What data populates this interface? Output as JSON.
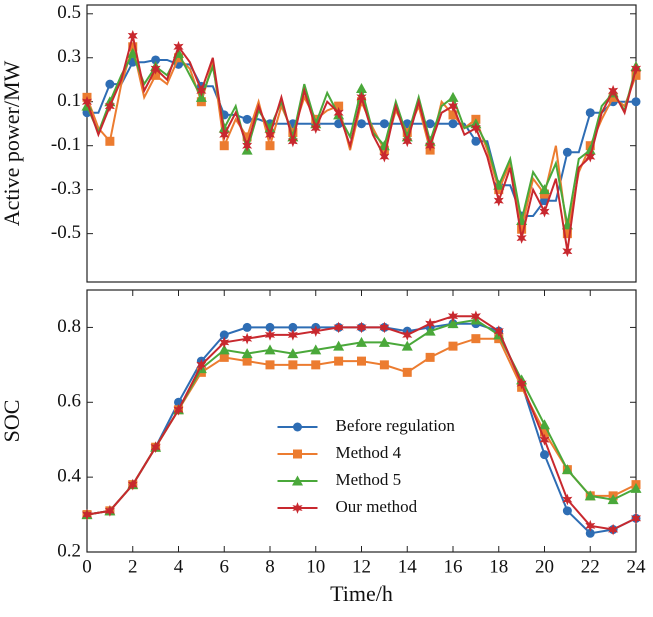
{
  "chart_data": [
    {
      "type": "line",
      "y_label": "Active power/MW",
      "x": [
        0,
        0.5,
        1,
        1.5,
        2,
        2.5,
        3,
        3.5,
        4,
        4.5,
        5,
        5.5,
        6,
        6.5,
        7,
        7.5,
        8,
        8.5,
        9,
        9.5,
        10,
        10.5,
        11,
        11.5,
        12,
        12.5,
        13,
        13.5,
        14,
        14.5,
        15,
        15.5,
        16,
        16.5,
        17,
        17.5,
        18,
        18.5,
        19,
        19.5,
        20,
        20.5,
        21,
        21.5,
        22,
        22.5,
        23,
        23.5,
        24
      ],
      "xlim": [
        0,
        24
      ],
      "ylim": [
        -0.72,
        0.54
      ],
      "yticks": [
        0.5,
        0.3,
        0.1,
        -0.1,
        -0.3,
        -0.5
      ],
      "series": [
        {
          "name": "Before regulation",
          "color": "#2e6db4",
          "marker": "circle",
          "values": [
            0.05,
            0.05,
            0.18,
            0.18,
            0.28,
            0.28,
            0.29,
            0.29,
            0.27,
            0.27,
            0.17,
            0.17,
            0.04,
            0.04,
            0.02,
            0.02,
            0.0,
            0.0,
            0.0,
            0.0,
            0.0,
            0.0,
            0.0,
            0.0,
            0.0,
            0.0,
            0.0,
            0.0,
            0.0,
            0.0,
            0.0,
            0.0,
            0.0,
            0.0,
            -0.08,
            -0.08,
            -0.28,
            -0.28,
            -0.42,
            -0.42,
            -0.35,
            -0.35,
            -0.13,
            -0.13,
            0.05,
            0.05,
            0.1,
            0.1,
            0.1
          ]
        },
        {
          "name": "Method 4",
          "color": "#ec7c30",
          "marker": "square",
          "values": [
            0.12,
            -0.02,
            -0.08,
            0.18,
            0.35,
            0.12,
            0.22,
            0.18,
            0.3,
            0.25,
            0.1,
            0.28,
            -0.1,
            0.02,
            -0.06,
            0.1,
            -0.1,
            0.08,
            -0.04,
            0.12,
            0.02,
            0.06,
            0.08,
            -0.12,
            0.1,
            -0.02,
            -0.12,
            0.06,
            -0.04,
            0.08,
            -0.12,
            0.1,
            0.04,
            -0.02,
            0.02,
            -0.12,
            -0.3,
            -0.18,
            -0.48,
            -0.25,
            -0.32,
            -0.1,
            -0.5,
            -0.22,
            -0.1,
            0.02,
            0.12,
            0.08,
            0.22
          ]
        },
        {
          "name": "Method 5",
          "color": "#4aa83a",
          "marker": "triangle",
          "values": [
            0.08,
            -0.04,
            0.1,
            0.22,
            0.32,
            0.18,
            0.26,
            0.22,
            0.32,
            0.22,
            0.12,
            0.26,
            -0.02,
            0.08,
            -0.12,
            0.06,
            -0.02,
            0.1,
            -0.06,
            0.18,
            0.0,
            0.14,
            0.04,
            -0.06,
            0.16,
            -0.04,
            -0.1,
            0.1,
            -0.06,
            0.12,
            -0.08,
            0.08,
            0.12,
            -0.02,
            0.0,
            -0.1,
            -0.28,
            -0.16,
            -0.44,
            -0.22,
            -0.3,
            -0.18,
            -0.46,
            -0.16,
            -0.12,
            0.08,
            0.14,
            0.06,
            0.26
          ]
        },
        {
          "name": "Our method",
          "color": "#c8282e",
          "marker": "star",
          "values": [
            0.1,
            -0.05,
            0.08,
            0.2,
            0.4,
            0.15,
            0.25,
            0.2,
            0.35,
            0.28,
            0.15,
            0.3,
            -0.05,
            0.05,
            -0.1,
            0.08,
            -0.05,
            0.12,
            -0.08,
            0.15,
            -0.02,
            0.1,
            0.05,
            -0.1,
            0.12,
            -0.05,
            -0.15,
            0.08,
            -0.08,
            0.1,
            -0.1,
            0.05,
            0.08,
            -0.05,
            -0.02,
            -0.15,
            -0.35,
            -0.2,
            -0.52,
            -0.3,
            -0.4,
            -0.25,
            -0.58,
            -0.2,
            -0.15,
            0.05,
            0.15,
            0.05,
            0.25
          ]
        }
      ]
    },
    {
      "type": "line",
      "x_label": "Time/h",
      "y_label": "SOC",
      "x": [
        0,
        1,
        2,
        3,
        4,
        5,
        6,
        7,
        8,
        9,
        10,
        11,
        12,
        13,
        14,
        15,
        16,
        17,
        18,
        19,
        20,
        21,
        22,
        23,
        24
      ],
      "xlim": [
        0,
        24
      ],
      "xticks": [
        0,
        2,
        4,
        6,
        8,
        10,
        12,
        14,
        16,
        18,
        20,
        22,
        24
      ],
      "ylim": [
        0.2,
        0.9
      ],
      "yticks": [
        0.8,
        0.6,
        0.4,
        0.2
      ],
      "legend": "lower center",
      "series": [
        {
          "name": "Before regulation",
          "color": "#2e6db4",
          "marker": "circle",
          "values": [
            0.3,
            0.31,
            0.38,
            0.48,
            0.6,
            0.71,
            0.78,
            0.8,
            0.8,
            0.8,
            0.8,
            0.8,
            0.8,
            0.8,
            0.79,
            0.8,
            0.81,
            0.81,
            0.79,
            0.65,
            0.46,
            0.31,
            0.25,
            0.26,
            0.29
          ]
        },
        {
          "name": "Method 4",
          "color": "#ec7c30",
          "marker": "square",
          "values": [
            0.3,
            0.31,
            0.38,
            0.48,
            0.58,
            0.68,
            0.72,
            0.71,
            0.7,
            0.7,
            0.7,
            0.71,
            0.71,
            0.7,
            0.68,
            0.72,
            0.75,
            0.77,
            0.77,
            0.64,
            0.52,
            0.42,
            0.35,
            0.35,
            0.38
          ]
        },
        {
          "name": "Method 5",
          "color": "#4aa83a",
          "marker": "triangle",
          "values": [
            0.3,
            0.31,
            0.38,
            0.48,
            0.58,
            0.69,
            0.74,
            0.73,
            0.74,
            0.73,
            0.74,
            0.75,
            0.76,
            0.76,
            0.75,
            0.79,
            0.81,
            0.82,
            0.78,
            0.66,
            0.54,
            0.42,
            0.35,
            0.34,
            0.37
          ]
        },
        {
          "name": "Our method",
          "color": "#c8282e",
          "marker": "star",
          "values": [
            0.3,
            0.31,
            0.38,
            0.48,
            0.58,
            0.7,
            0.76,
            0.77,
            0.78,
            0.78,
            0.79,
            0.8,
            0.8,
            0.8,
            0.78,
            0.81,
            0.83,
            0.83,
            0.79,
            0.65,
            0.5,
            0.34,
            0.27,
            0.26,
            0.29
          ]
        }
      ]
    }
  ]
}
